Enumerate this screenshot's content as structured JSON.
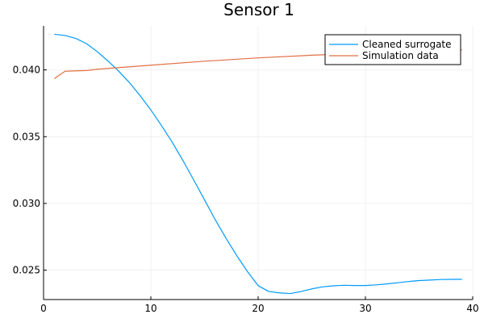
{
  "chart_data": {
    "type": "line",
    "title": "Sensor 1",
    "xlabel": "",
    "ylabel": "",
    "xlim": [
      0,
      40
    ],
    "ylim": [
      0.0228,
      0.0433
    ],
    "x_ticks": [
      0,
      10,
      20,
      30,
      40
    ],
    "x_tick_labels": [
      "0",
      "10",
      "20",
      "30",
      "40"
    ],
    "y_ticks": [
      0.025,
      0.03,
      0.035,
      0.04
    ],
    "y_tick_labels": [
      "0.025",
      "0.030",
      "0.035",
      "0.040"
    ],
    "grid": true,
    "legend_position": "top-right",
    "series": [
      {
        "name": "Cleaned surrogate",
        "color": "#009AFA",
        "x": [
          1,
          2,
          3,
          4,
          5,
          6,
          7,
          8,
          9,
          10,
          11,
          12,
          13,
          14,
          15,
          16,
          17,
          18,
          19,
          20,
          21,
          22,
          23,
          24,
          25,
          26,
          27,
          28,
          29,
          30,
          31,
          32,
          33,
          34,
          35,
          36,
          37,
          38,
          39
        ],
        "values": [
          0.04267,
          0.04258,
          0.04236,
          0.04197,
          0.04137,
          0.04067,
          0.03991,
          0.03905,
          0.03807,
          0.037,
          0.03582,
          0.03457,
          0.0332,
          0.03175,
          0.03027,
          0.02878,
          0.0274,
          0.0261,
          0.0249,
          0.02384,
          0.0234,
          0.0233,
          0.02325,
          0.0234,
          0.0236,
          0.02375,
          0.02383,
          0.02387,
          0.02385,
          0.02385,
          0.0239,
          0.02397,
          0.02406,
          0.02415,
          0.02422,
          0.02426,
          0.0243,
          0.02431,
          0.02432
        ]
      },
      {
        "name": "Simulation data",
        "color": "#E26F46",
        "x": [
          1,
          2,
          3,
          4,
          5,
          10,
          15,
          20,
          25,
          30,
          35,
          39
        ],
        "values": [
          0.03935,
          0.0399,
          0.03993,
          0.03995,
          0.04005,
          0.04035,
          0.04065,
          0.0409,
          0.0411,
          0.04125,
          0.0414,
          0.0415
        ]
      }
    ]
  }
}
